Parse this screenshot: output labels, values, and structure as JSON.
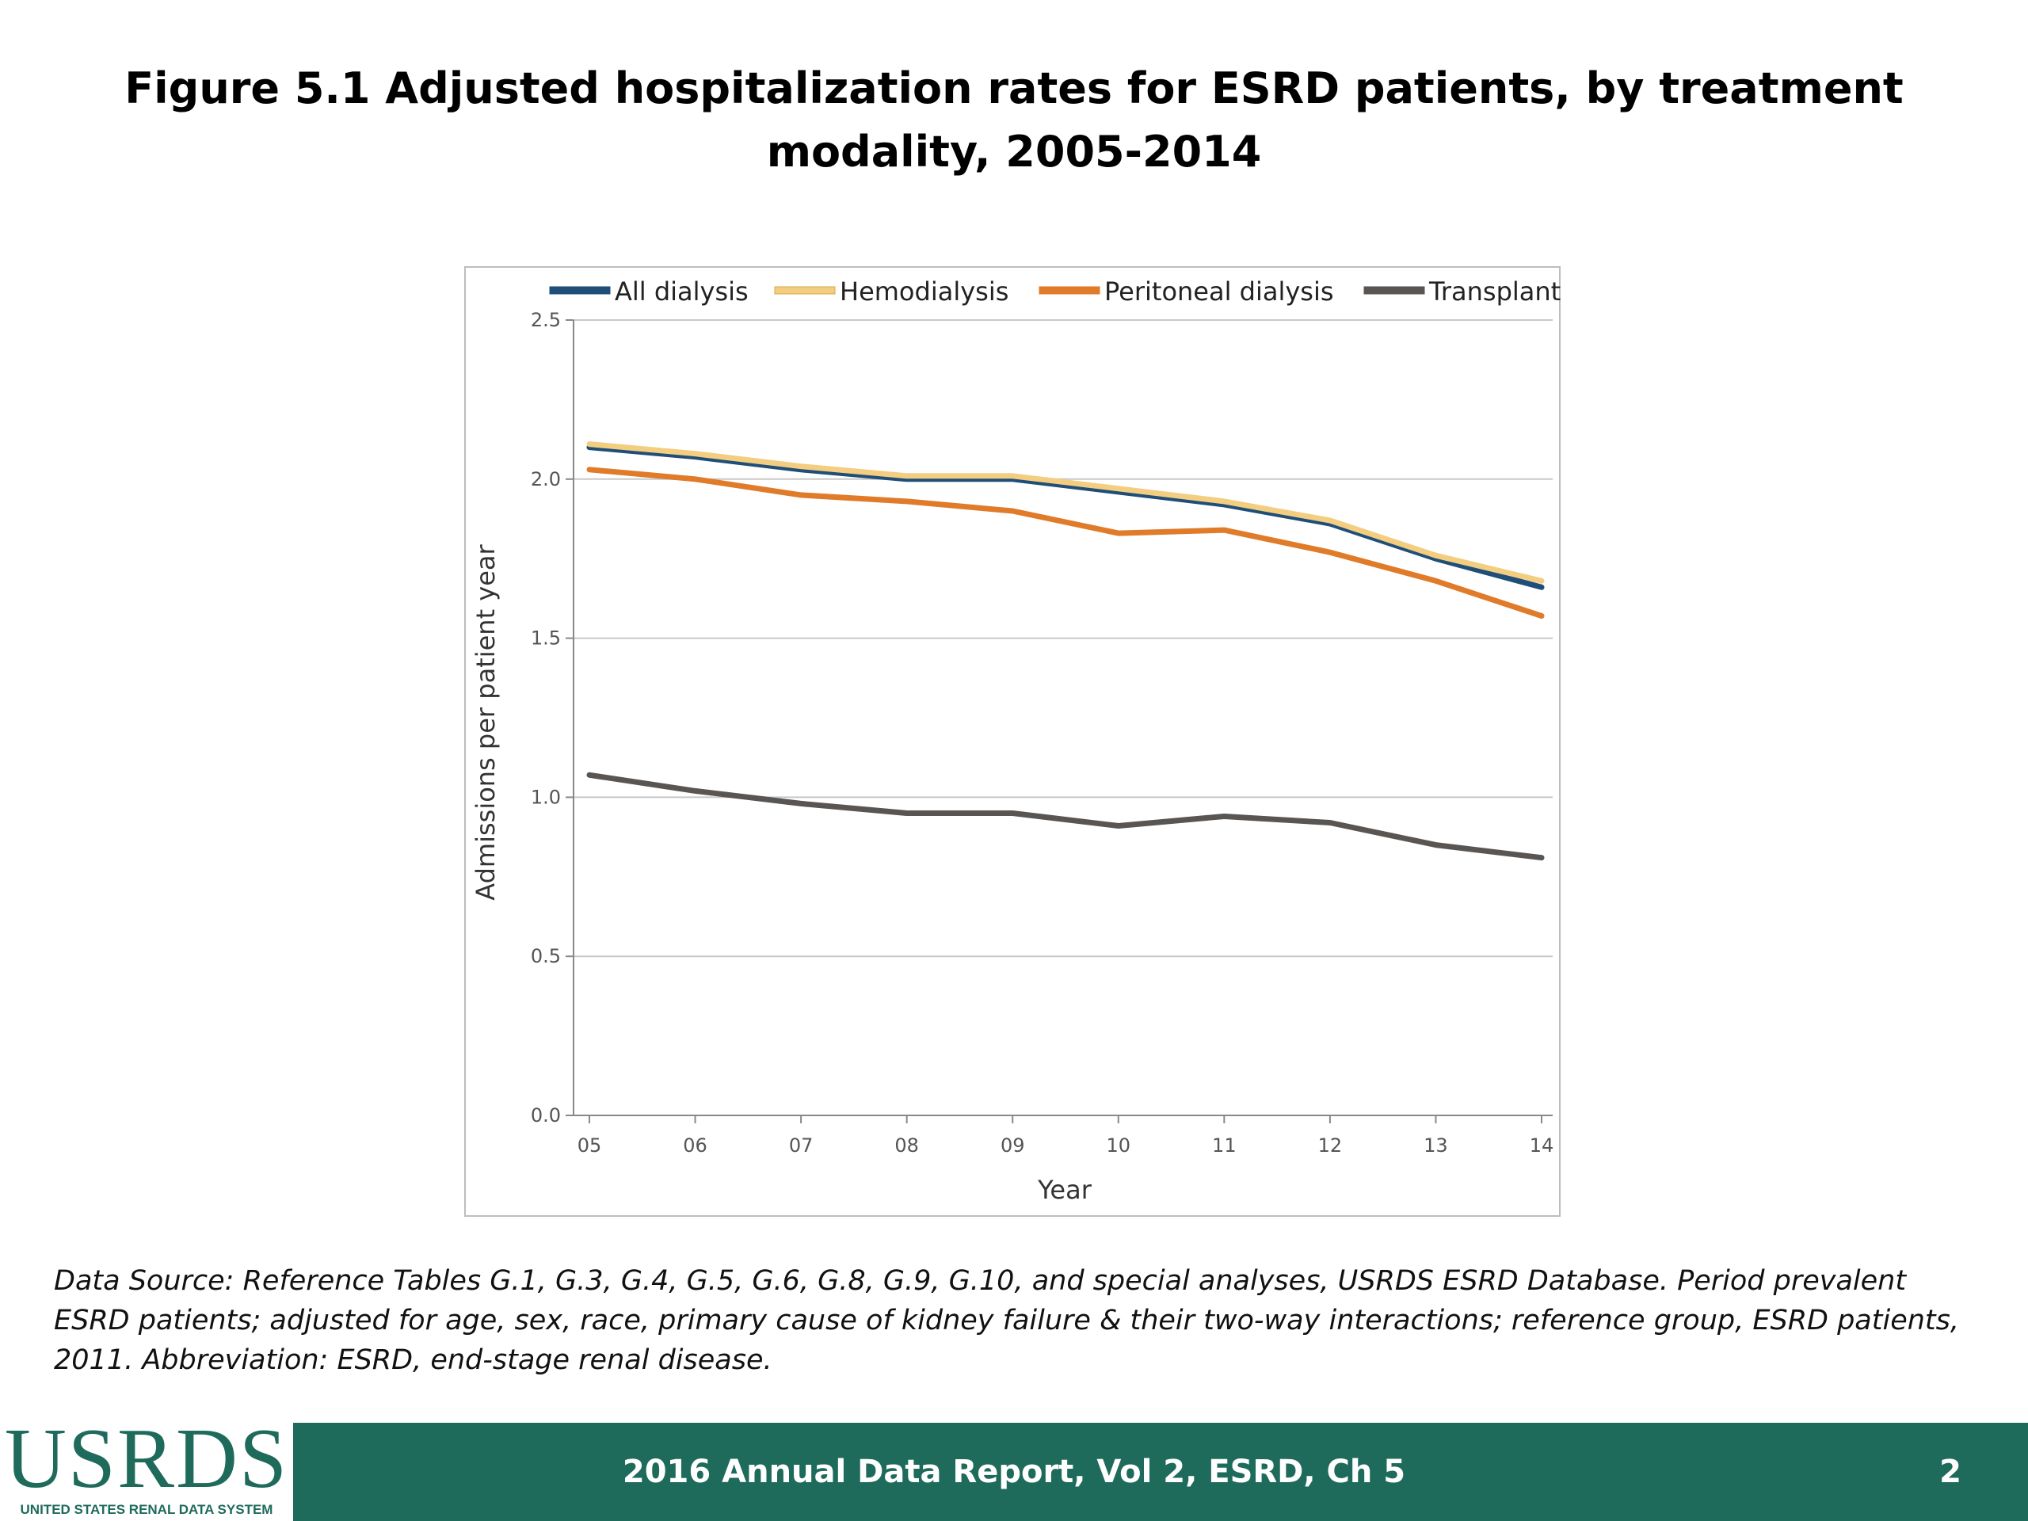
{
  "title": "Figure 5.1 Adjusted hospitalization rates for ESRD patients, by treatment modality, 2005-2014",
  "footnote": "Data Source: Reference Tables G.1, G.3, G.4, G.5, G.6, G.8, G.9, G.10, and special analyses, USRDS ESRD Database. Period prevalent ESRD patients; adjusted for age, sex, race, primary cause of kidney failure & their two-way interactions; reference group, ESRD patients, 2011. Abbreviation: ESRD, end-stage renal disease.",
  "footer": {
    "report": "2016 Annual Data Report, Vol 2, ESRD, Ch 5",
    "page": "2",
    "logo_word": "USRDS",
    "logo_sub": "UNITED STATES RENAL DATA SYSTEM",
    "color": "#1e6b5c"
  },
  "chart_data": {
    "type": "line",
    "xlabel": "Year",
    "ylabel": "Admissions per patient year",
    "categories": [
      "05",
      "06",
      "07",
      "08",
      "09",
      "10",
      "11",
      "12",
      "13",
      "14"
    ],
    "ylim": [
      0,
      2.5
    ],
    "yticks": [
      "0.0",
      "0.5",
      "1.0",
      "1.5",
      "2.0",
      "2.5"
    ],
    "grid": true,
    "legend_position": "top",
    "series": [
      {
        "name": "All dialysis",
        "color": "#1f4e79",
        "values": [
          2.1,
          2.07,
          2.03,
          2.0,
          2.0,
          1.96,
          1.92,
          1.86,
          1.75,
          1.66
        ]
      },
      {
        "name": "Hemodialysis",
        "color": "#f3cd80",
        "values": [
          2.11,
          2.08,
          2.04,
          2.01,
          2.01,
          1.97,
          1.93,
          1.87,
          1.76,
          1.68
        ]
      },
      {
        "name": "Peritoneal dialysis",
        "color": "#e07b2a",
        "values": [
          2.03,
          2.0,
          1.95,
          1.93,
          1.9,
          1.83,
          1.84,
          1.77,
          1.68,
          1.57
        ]
      },
      {
        "name": "Transplant",
        "color": "#595553",
        "values": [
          1.07,
          1.02,
          0.98,
          0.95,
          0.95,
          0.91,
          0.94,
          0.92,
          0.85,
          0.81
        ]
      }
    ]
  }
}
